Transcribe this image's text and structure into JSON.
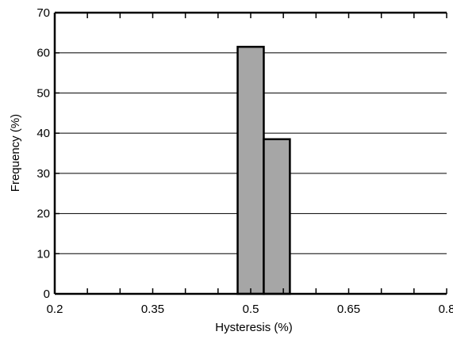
{
  "chart_data": {
    "type": "bar",
    "xlabel": "Hysteresis (%)",
    "ylabel": "Frequency (%)",
    "xlim": [
      0.2,
      0.8
    ],
    "ylim": [
      0,
      70
    ],
    "x_ticks": [
      "0.2",
      "0.35",
      "0.5",
      "0.65",
      "0.8"
    ],
    "y_ticks": [
      "0",
      "10",
      "20",
      "30",
      "40",
      "50",
      "60",
      "70"
    ],
    "bin_width": 0.04,
    "bins": [
      {
        "x0": 0.48,
        "x1": 0.52,
        "value": 61.5
      },
      {
        "x0": 0.52,
        "x1": 0.56,
        "value": 38.5
      }
    ],
    "grid": "horizontal",
    "bar_color": "#a6a6a6",
    "edge_color": "#000000"
  }
}
